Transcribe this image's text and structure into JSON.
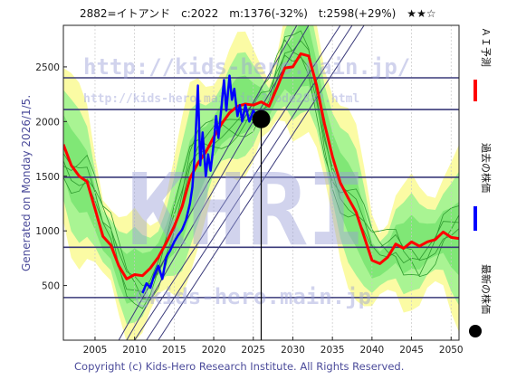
{
  "header": {
    "title": "2882=イトアンド　c:2022　m:1376(-32%)　t:2598(+29%)　★★☆"
  },
  "footer": {
    "copyright": "Copyright (c) Kids-Hero Research Institute. All Rights Reserved."
  },
  "side": {
    "generated": "Generated on Monday 2026/1/5."
  },
  "legend": {
    "forecast": "ＡＩ予測",
    "past": "過去の株価",
    "latest": "最新の株価"
  },
  "watermarks": [
    "http://kids-hero.main.jp/",
    "http://kids-hero.main.jp/?code2882.html",
    "KHRI",
    "@kids-hero.main.jp"
  ],
  "colors": {
    "forecast": "#ff0000",
    "past": "#0000ff",
    "latest": "#000000",
    "band_yellow": "#fbfb9a",
    "band_green": "#8ef28e",
    "grid_line": "#3a3a7a"
  },
  "chart_data": {
    "type": "line",
    "xlim": [
      2001,
      2051
    ],
    "ylim": [
      0,
      2880
    ],
    "xticks": [
      2005,
      2010,
      2015,
      2020,
      2025,
      2030,
      2035,
      2040,
      2045,
      2050
    ],
    "yticks": [
      500,
      1000,
      1500,
      2000,
      2500
    ],
    "hlines": [
      2400,
      2110,
      1490,
      850,
      390
    ],
    "latest_point": {
      "x": 2026.0,
      "y": 2022
    },
    "series": [
      {
        "name": "ＡＩ予測",
        "x": [
          2001,
          2002,
          2003,
          2004,
          2005,
          2006,
          2007,
          2008,
          2009,
          2010,
          2011,
          2012,
          2013,
          2014,
          2015,
          2016,
          2017,
          2018,
          2019,
          2020,
          2021,
          2022,
          2023,
          2024,
          2025,
          2026,
          2027,
          2028,
          2029,
          2030,
          2031,
          2032,
          2033,
          2034,
          2035,
          2036,
          2037,
          2038,
          2039,
          2040,
          2041,
          2042,
          2043,
          2044,
          2045,
          2046,
          2047,
          2048,
          2049,
          2050,
          2051
        ],
        "y": [
          1790,
          1600,
          1500,
          1450,
          1200,
          950,
          870,
          680,
          560,
          600,
          590,
          660,
          760,
          890,
          1040,
          1220,
          1480,
          1620,
          1720,
          1860,
          1980,
          2080,
          2140,
          2160,
          2150,
          2180,
          2140,
          2310,
          2490,
          2500,
          2620,
          2600,
          2330,
          1980,
          1680,
          1440,
          1300,
          1170,
          950,
          730,
          700,
          760,
          880,
          840,
          900,
          860,
          900,
          920,
          990,
          940,
          930
        ]
      },
      {
        "name": "過去の株価",
        "x": [
          2011,
          2011.5,
          2012,
          2012.5,
          2013,
          2013.5,
          2014,
          2014.5,
          2015,
          2015.5,
          2016,
          2016.5,
          2017,
          2017.3,
          2017.6,
          2018,
          2018.3,
          2018.6,
          2019,
          2019.3,
          2019.6,
          2020,
          2020.3,
          2020.6,
          2021,
          2021.3,
          2021.6,
          2022,
          2022.3,
          2022.6,
          2023,
          2023.3,
          2023.6,
          2024,
          2024.5,
          2025,
          2025.5,
          2026
        ],
        "y": [
          430,
          520,
          480,
          600,
          680,
          560,
          760,
          820,
          900,
          960,
          1010,
          1100,
          1250,
          1400,
          1700,
          2330,
          1600,
          1900,
          1500,
          1700,
          1550,
          1800,
          2050,
          1850,
          2150,
          2380,
          2100,
          2420,
          2200,
          2300,
          2050,
          2150,
          2000,
          2150,
          2000,
          2100,
          2050,
          2022
        ]
      }
    ]
  }
}
